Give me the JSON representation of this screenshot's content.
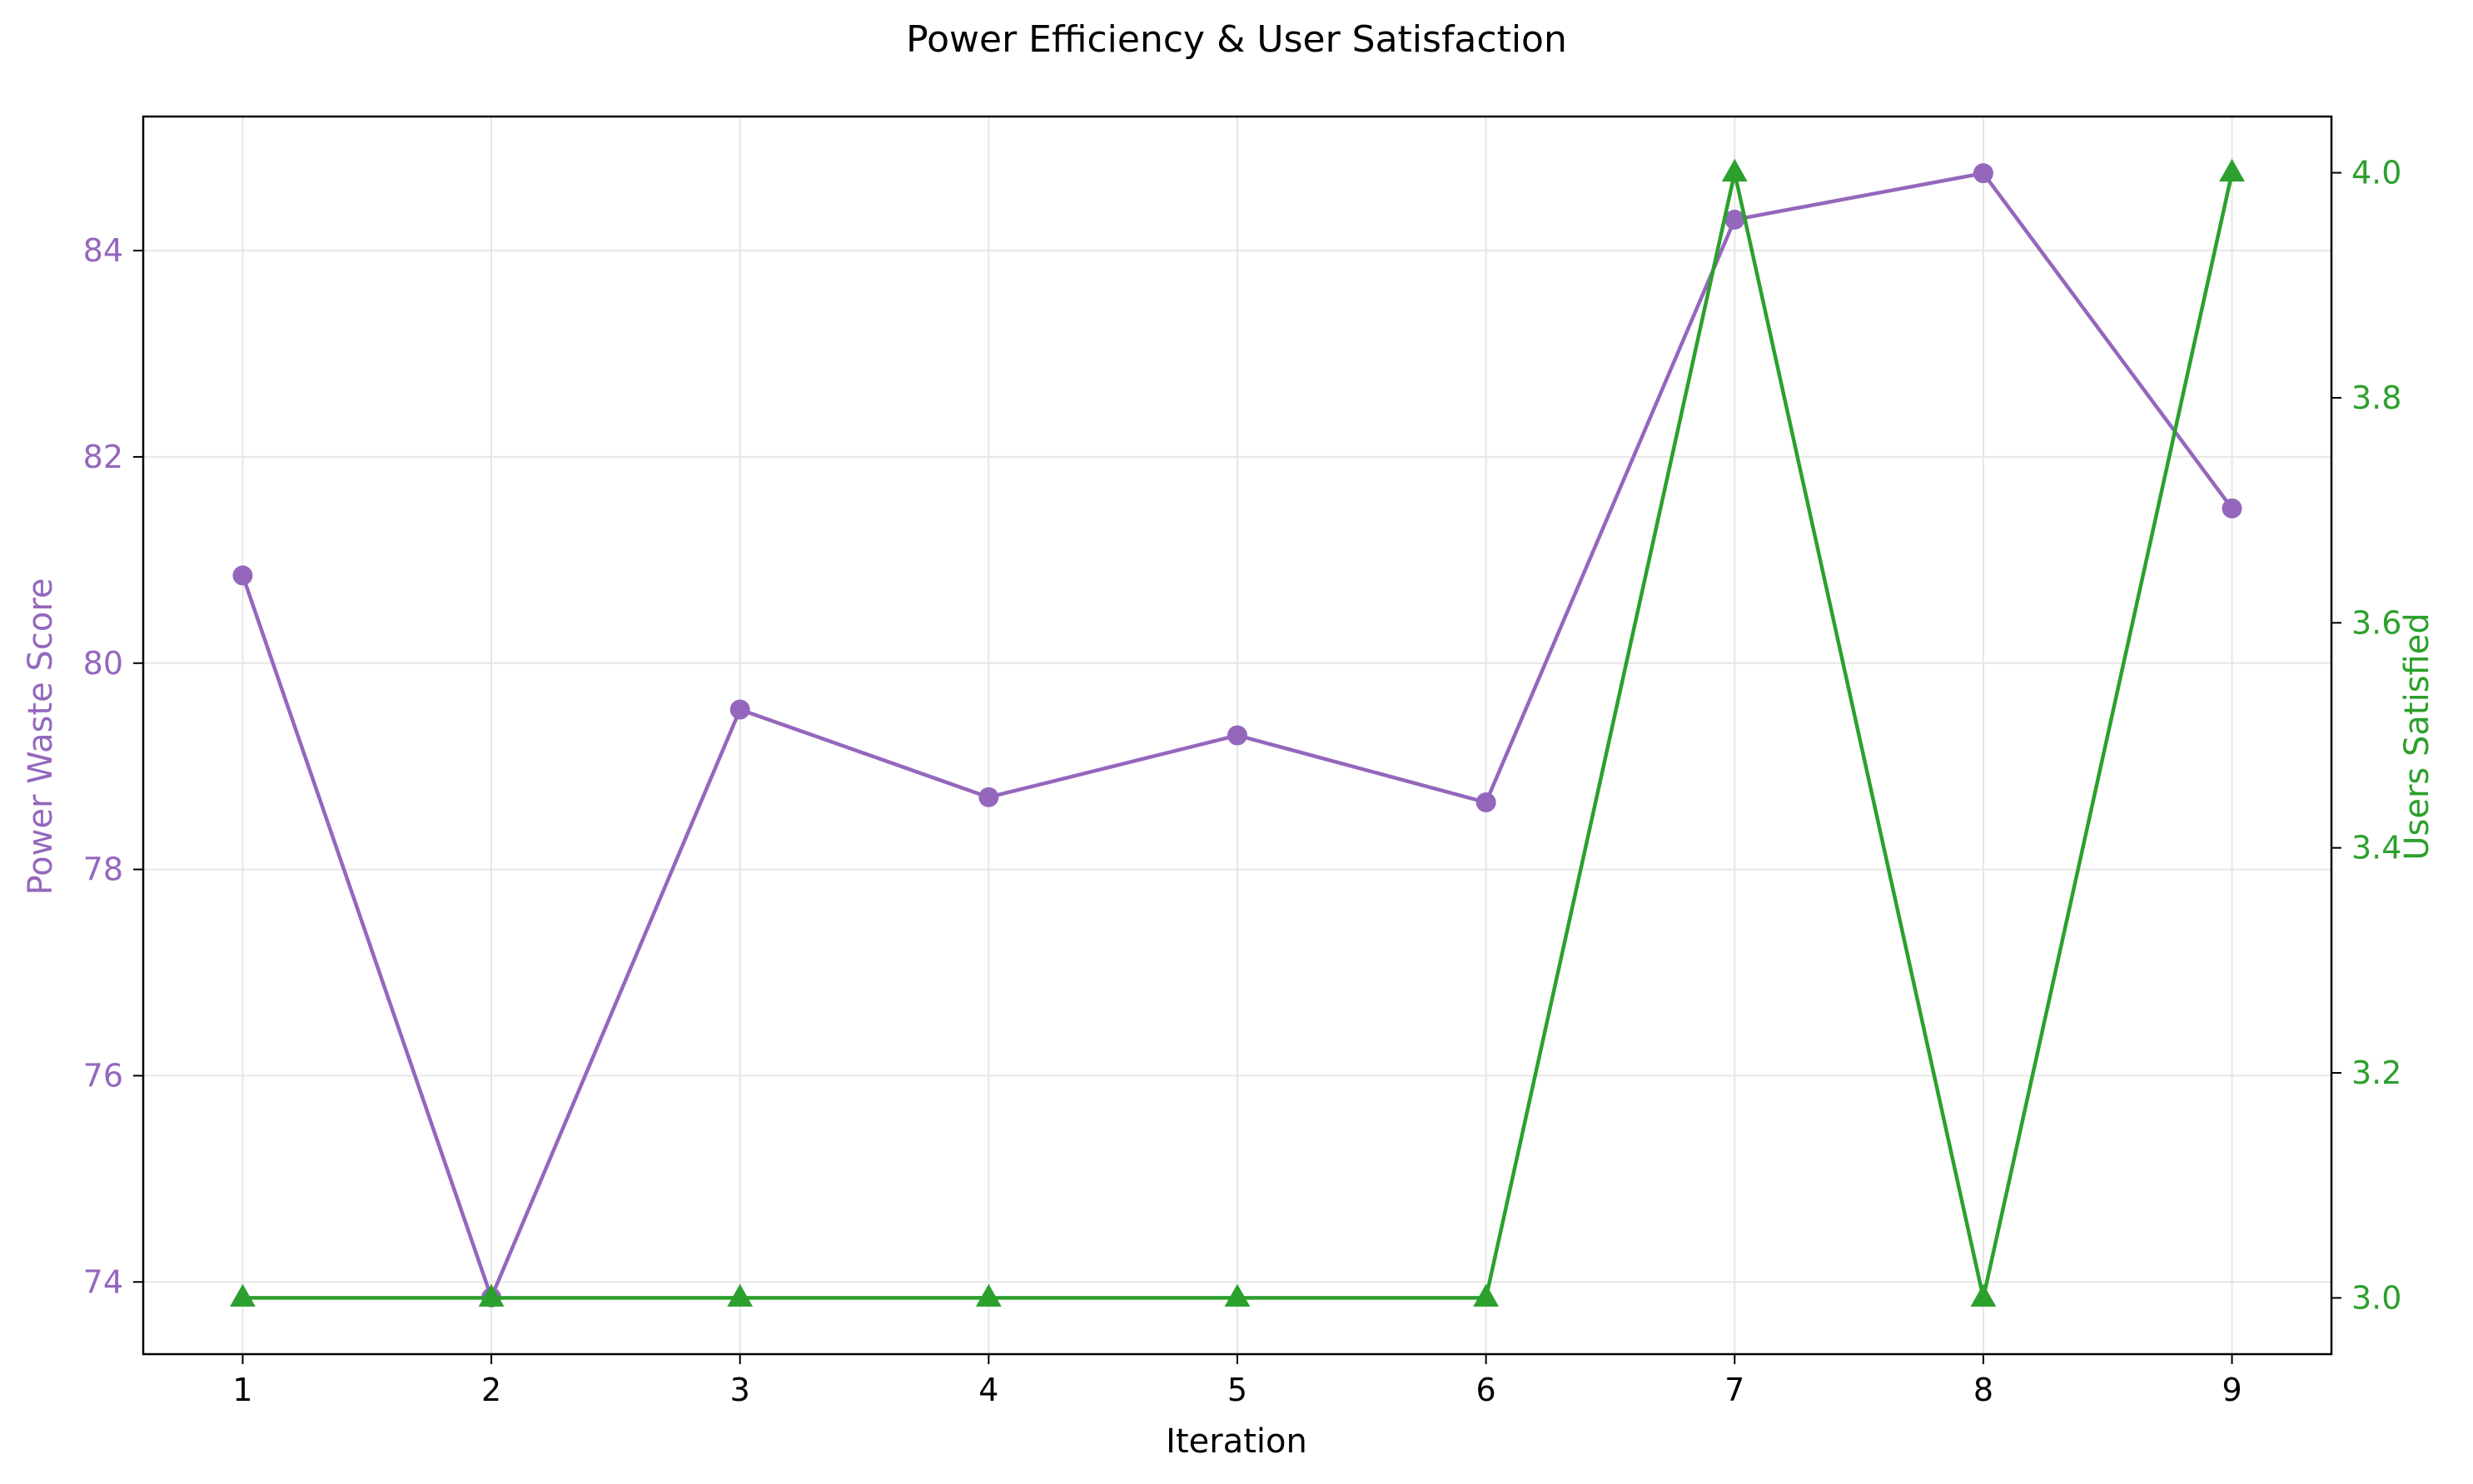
{
  "chart_data": {
    "type": "line",
    "title": "Power Efficiency & User Satisfaction",
    "xlabel": "Iteration",
    "x": [
      1,
      2,
      3,
      4,
      5,
      6,
      7,
      8,
      9
    ],
    "xlim": [
      0.6,
      9.4
    ],
    "grid": true,
    "axes": {
      "left": {
        "label": "Power Waste Score",
        "ylim": [
          73.3,
          85.3
        ],
        "ticks": [
          74,
          76,
          78,
          80,
          82,
          84
        ],
        "color": "#9467bd"
      },
      "right": {
        "label": "Users Satisfied",
        "ylim": [
          2.95,
          4.05
        ],
        "ticks": [
          "3.0",
          "3.2",
          "3.4",
          "3.6",
          "3.8",
          "4.0"
        ],
        "color": "#2ca02c"
      }
    },
    "series": [
      {
        "axis": "left",
        "marker": "circle",
        "color": "#9467bd",
        "values": [
          80.85,
          73.85,
          79.55,
          78.7,
          79.3,
          78.65,
          84.3,
          84.75,
          81.5
        ]
      },
      {
        "axis": "right",
        "marker": "triangle",
        "color": "#2ca02c",
        "values": [
          3,
          3,
          3,
          3,
          3,
          3,
          4,
          3,
          4
        ]
      }
    ]
  }
}
